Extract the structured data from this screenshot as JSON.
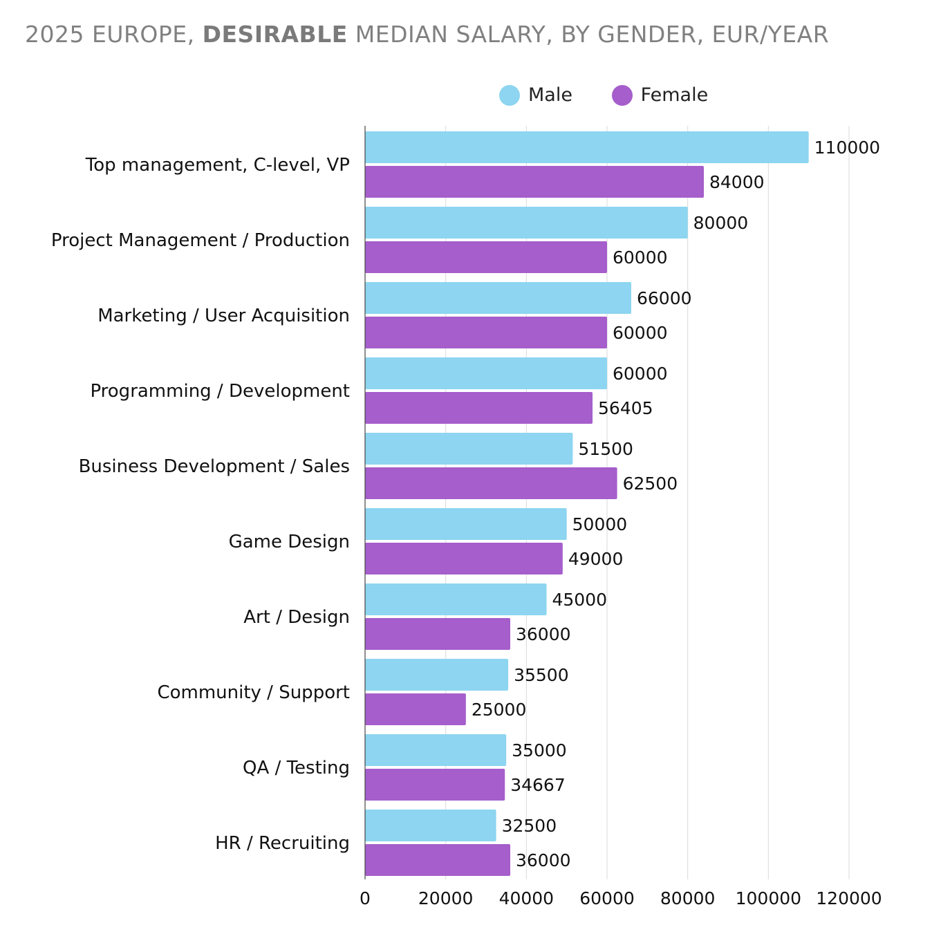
{
  "title": {
    "prefix": "2025 EUROPE, ",
    "bold": "DESIRABLE",
    "suffix": " MEDIAN SALARY, BY GENDER, EUR/YEAR"
  },
  "colors": {
    "male": "#8dd5f0",
    "female": "#a55ecb"
  },
  "chart_data": {
    "type": "bar",
    "orientation": "horizontal",
    "title": "2025 EUROPE, DESIRABLE MEDIAN SALARY, BY GENDER, EUR/YEAR",
    "categories": [
      "Top management, C-level, VP",
      "Project Management / Production",
      "Marketing / User Acquisition",
      "Programming / Development",
      "Business Development / Sales",
      "Game Design",
      "Art / Design",
      "Community / Support",
      "QA / Testing",
      "HR / Recruiting"
    ],
    "series": [
      {
        "name": "Male",
        "values": [
          110000,
          80000,
          66000,
          60000,
          51500,
          50000,
          45000,
          35500,
          35000,
          32500
        ]
      },
      {
        "name": "Female",
        "values": [
          84000,
          60000,
          60000,
          56405,
          62500,
          49000,
          36000,
          25000,
          34667,
          36000
        ]
      }
    ],
    "xlim": [
      0,
      120000
    ],
    "xticks": [
      0,
      20000,
      40000,
      60000,
      80000,
      100000,
      120000
    ],
    "xlabel": "",
    "ylabel": "",
    "grid": true,
    "legend": "top-right"
  }
}
